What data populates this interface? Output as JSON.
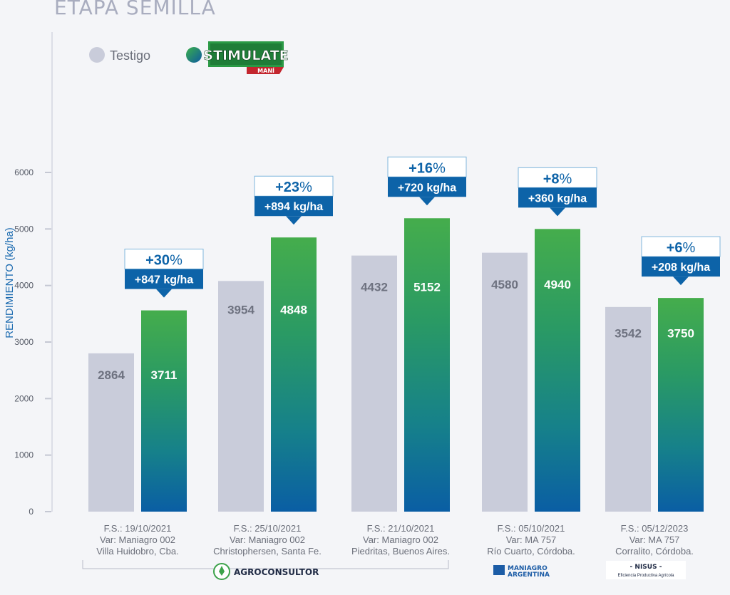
{
  "title": "ETAPA SEMILLA",
  "legend": {
    "testigo_label": "Testigo",
    "testigo_color": "#c9ccda",
    "stimulate_logo_text": "STIMULATE",
    "stimulate_logo_sub": "MANÍ"
  },
  "colors": {
    "accent_blue": "#0d63a8",
    "bar_top_green": "#45ad4c",
    "bar_bottom_blue": "#0a5ea4",
    "axis_label": "#1c6bb0"
  },
  "logos": {
    "agroconsultor": "AGROCONSULTOR",
    "maniagro_line1": "MANIAGRO",
    "maniagro_line2": "ARGENTINA",
    "nisus_line1": "- NISUS -",
    "nisus_line2": "Eficiencia Productiva Agrícola"
  },
  "chart_data": {
    "type": "bar",
    "ylabel": "RENDIMIENTO (kg/ha)",
    "ylim": [
      0,
      6000
    ],
    "yticks": [
      0,
      1000,
      2000,
      3000,
      4000,
      5000,
      6000
    ],
    "categories": [
      [
        "F.S.: 19/10/2021",
        "Var: Maniagro 002",
        "Villa Huidobro, Cba."
      ],
      [
        "F.S.: 25/10/2021",
        "Var: Maniagro 002",
        "Christophersen, Santa Fe."
      ],
      [
        "F.S.: 21/10/2021",
        "Var: Maniagro 002",
        "Piedritas, Buenos Aires."
      ],
      [
        "F.S.: 05/10/2021",
        "Var: MA 757",
        "Río Cuarto, Córdoba."
      ],
      [
        "F.S.: 05/12/2023",
        "Var: MA 757",
        "Corralito, Córdoba."
      ]
    ],
    "series": [
      {
        "name": "Testigo",
        "values": [
          2864,
          3954,
          4432,
          4580,
          3542
        ],
        "color": "#c9ccda"
      },
      {
        "name": "STIMULATE MANÍ",
        "values": [
          3711,
          4848,
          5152,
          4940,
          3750
        ],
        "color": "gradient"
      }
    ],
    "bar_heights": [
      [
        2800,
        4080,
        4530,
        4580,
        3620
      ],
      [
        3560,
        4850,
        5190,
        5000,
        3780
      ]
    ],
    "annotations": [
      {
        "percent_num": "+30",
        "percent_sign": "%",
        "kg": "+847 kg/ha"
      },
      {
        "percent_num": "+23",
        "percent_sign": "%",
        "kg": "+894 kg/ha"
      },
      {
        "percent_num": "+16",
        "percent_sign": "%",
        "kg": "+720 kg/ha"
      },
      {
        "percent_num": "+8",
        "percent_sign": "%",
        "kg": "+360 kg/ha"
      },
      {
        "percent_num": "+6",
        "percent_sign": "%",
        "kg": "+208 kg/ha"
      }
    ],
    "grid": false,
    "legend_position": "top-left"
  }
}
